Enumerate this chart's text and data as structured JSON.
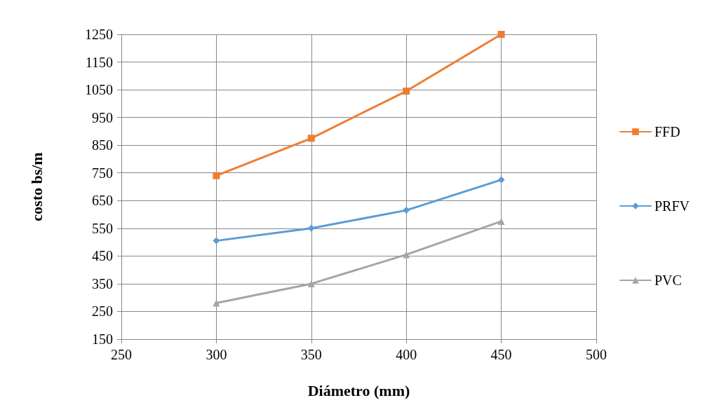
{
  "chart_data": {
    "type": "line",
    "xlabel": "Diámetro (mm)",
    "ylabel": "costo bs/m",
    "x": [
      300,
      350,
      400,
      450
    ],
    "series": [
      {
        "name": "FFD",
        "color": "#ed7d31",
        "marker": "square",
        "values": [
          740,
          875,
          1045,
          1250
        ]
      },
      {
        "name": "PRFV",
        "color": "#5b9bd5",
        "marker": "diamond",
        "values": [
          505,
          550,
          615,
          725
        ]
      },
      {
        "name": "PVC",
        "color": "#a5a5a5",
        "marker": "triangle",
        "values": [
          280,
          350,
          455,
          575
        ]
      }
    ],
    "xlim": [
      250,
      500
    ],
    "xticks": [
      250,
      300,
      350,
      400,
      450,
      500
    ],
    "ylim": [
      150,
      1250
    ],
    "yticks": [
      150,
      250,
      350,
      450,
      550,
      650,
      750,
      850,
      950,
      1050,
      1150,
      1250
    ],
    "grid": true,
    "legend": "right"
  }
}
